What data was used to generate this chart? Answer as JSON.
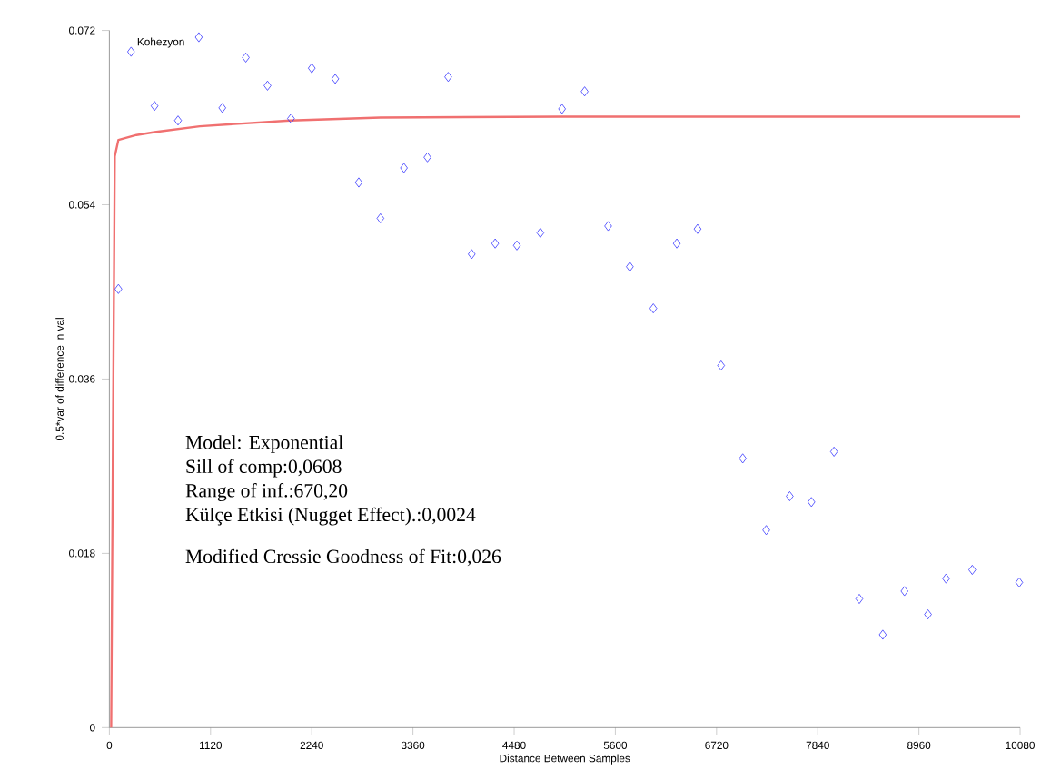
{
  "chart_data": {
    "type": "scatter",
    "title": "Kohezyon",
    "xlabel": "Distance Between Samples",
    "ylabel": "0.5*var of difference in val",
    "xlim": [
      0,
      10080
    ],
    "ylim": [
      0,
      0.072
    ],
    "xticks": [
      0,
      1120,
      2240,
      3360,
      4480,
      5600,
      6720,
      7840,
      8960,
      10080
    ],
    "yticks": [
      0,
      0.018,
      0.036,
      0.054,
      0.072
    ],
    "marker": "diamond",
    "series": [
      {
        "color": "#3333ff",
        "x": [
          100,
          240,
          500,
          760,
          990,
          1250,
          1510,
          1750,
          2010,
          2240,
          2500,
          2760,
          3000,
          3260,
          3520,
          3750,
          4010,
          4270,
          4510,
          4770,
          5010,
          5260,
          5520,
          5760,
          6020,
          6280,
          6510,
          6770,
          7010,
          7270,
          7530,
          7770,
          8020,
          8300,
          8560,
          8800,
          9060,
          9260,
          9550,
          10070
        ],
        "values": [
          0.0453,
          0.0698,
          0.0642,
          0.0627,
          0.0713,
          0.064,
          0.0692,
          0.0663,
          0.0629,
          0.0681,
          0.067,
          0.0563,
          0.0526,
          0.0578,
          0.0589,
          0.0672,
          0.0489,
          0.05,
          0.0498,
          0.0511,
          0.0639,
          0.0657,
          0.0518,
          0.0476,
          0.0433,
          0.05,
          0.0515,
          0.0374,
          0.0278,
          0.0204,
          0.0239,
          0.0233,
          0.0285,
          0.0133,
          0.0096,
          0.0141,
          0.0117,
          0.0154,
          0.0163,
          0.015
        ]
      },
      {
        "type": "line",
        "marker": "none",
        "color": "#f07070",
        "x": [
          20,
          40,
          60,
          100,
          300,
          500,
          1000,
          2000,
          3000,
          5000,
          10080
        ],
        "values": [
          0,
          0.03,
          0.059,
          0.0607,
          0.0612,
          0.0615,
          0.0621,
          0.0627,
          0.063,
          0.0631,
          0.0631
        ]
      }
    ],
    "annotations": [
      "Model: Exponential",
      "Sill of comp:0,0608",
      "Range of inf.:670,20",
      "Külçe Etkisi (Nugget Effect).:0,0024",
      "Modified Cressie Goodness of Fit:0,026"
    ]
  }
}
